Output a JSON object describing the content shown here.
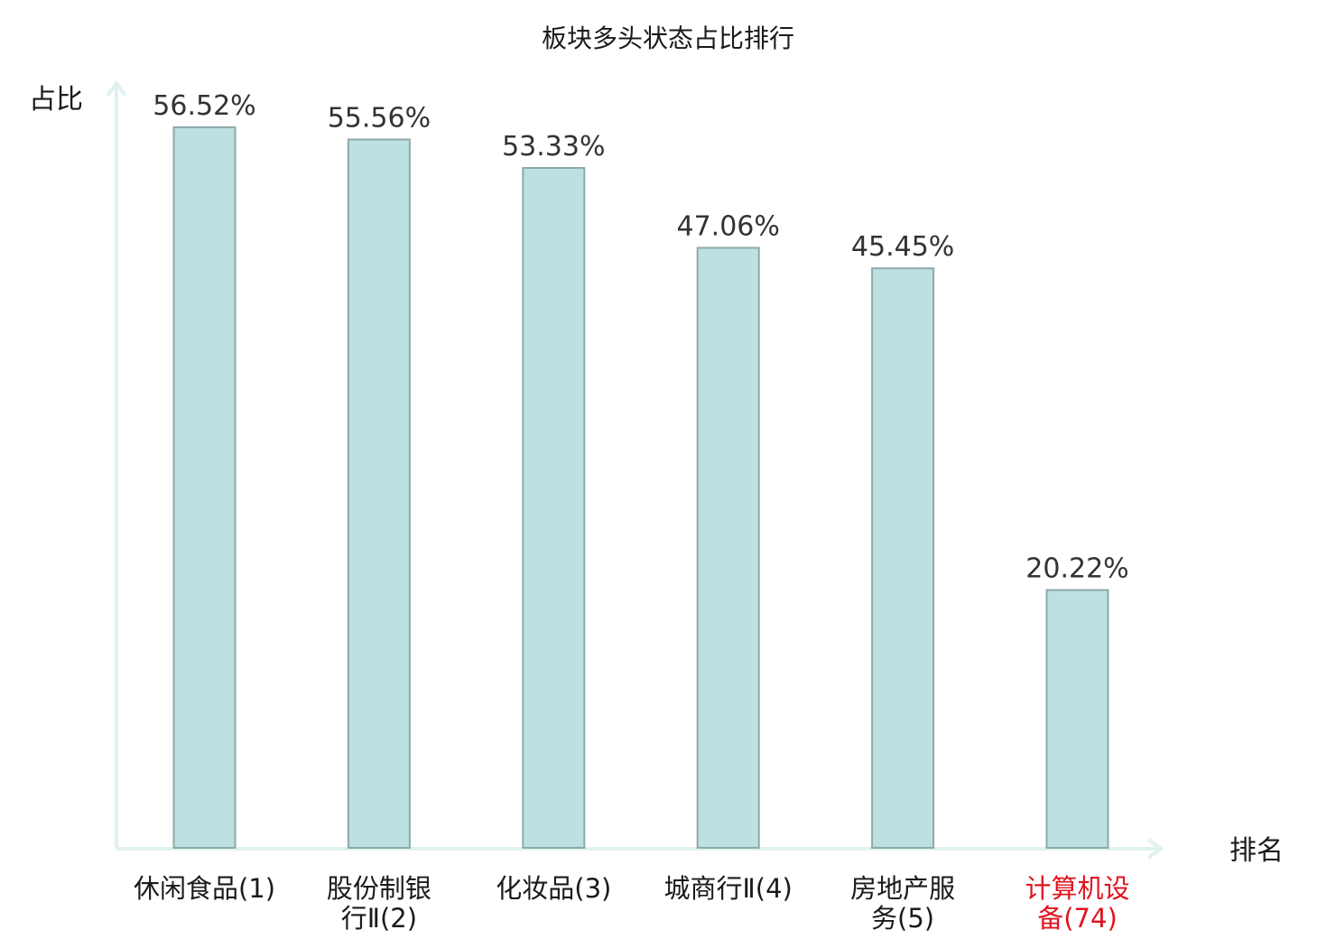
{
  "chart_data": {
    "type": "bar",
    "title": "板块多头状态占比排行",
    "ylabel": "占比",
    "xlabel": "排名",
    "categories": [
      [
        "休闲食品(1)"
      ],
      [
        "股份制银",
        "行Ⅱ(2)"
      ],
      [
        "化妆品(3)"
      ],
      [
        "城商行Ⅱ(4)"
      ],
      [
        "房地产服",
        "务(5)"
      ],
      [
        "计算机设",
        "备(74)"
      ]
    ],
    "values": [
      56.52,
      55.56,
      53.33,
      47.06,
      45.45,
      20.22
    ],
    "value_labels": [
      "56.52%",
      "55.56%",
      "53.33%",
      "47.06%",
      "45.45%",
      "20.22%"
    ],
    "ylim": [
      0,
      60
    ],
    "grid": false,
    "legend": "none",
    "highlight_index": 5
  },
  "colors": {
    "bar_fill": "#bde0e2",
    "bar_stroke": "#8fa9aa",
    "axis": "#dff2f0",
    "text": "#1a1a1a",
    "value_label": "#333333",
    "highlight": "#e0141e"
  }
}
